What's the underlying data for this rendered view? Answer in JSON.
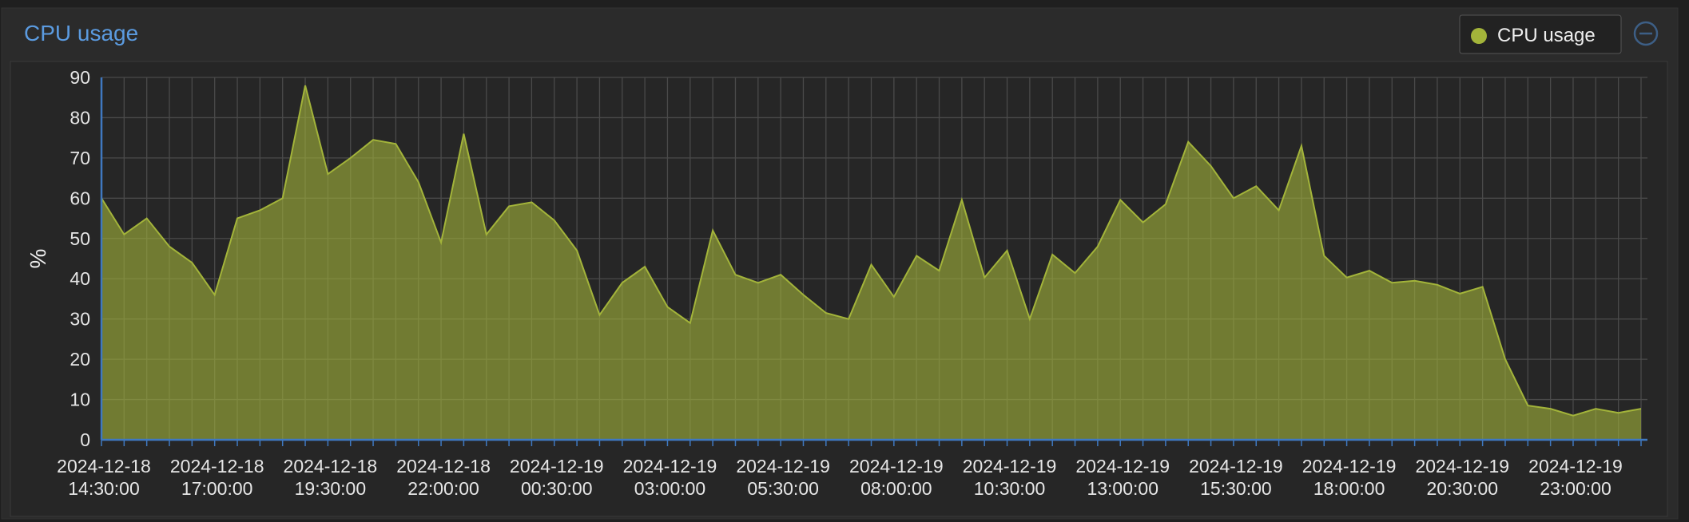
{
  "chart_data": {
    "type": "area",
    "title": "CPU usage",
    "ylabel": "%",
    "x": [
      "2024-12-18 14:30:00",
      "2024-12-18 15:00:00",
      "2024-12-18 15:30:00",
      "2024-12-18 16:00:00",
      "2024-12-18 16:30:00",
      "2024-12-18 17:00:00",
      "2024-12-18 17:30:00",
      "2024-12-18 18:00:00",
      "2024-12-18 18:30:00",
      "2024-12-18 19:00:00",
      "2024-12-18 19:30:00",
      "2024-12-18 20:00:00",
      "2024-12-18 20:30:00",
      "2024-12-18 21:00:00",
      "2024-12-18 21:30:00",
      "2024-12-18 22:00:00",
      "2024-12-18 22:30:00",
      "2024-12-18 23:00:00",
      "2024-12-18 23:30:00",
      "2024-12-19 00:00:00",
      "2024-12-19 00:30:00",
      "2024-12-19 01:00:00",
      "2024-12-19 01:30:00",
      "2024-12-19 02:00:00",
      "2024-12-19 02:30:00",
      "2024-12-19 03:00:00",
      "2024-12-19 03:30:00",
      "2024-12-19 04:00:00",
      "2024-12-19 04:30:00",
      "2024-12-19 05:00:00",
      "2024-12-19 05:30:00",
      "2024-12-19 06:00:00",
      "2024-12-19 06:30:00",
      "2024-12-19 07:00:00",
      "2024-12-19 07:30:00",
      "2024-12-19 08:00:00",
      "2024-12-19 08:30:00",
      "2024-12-19 09:00:00",
      "2024-12-19 09:30:00",
      "2024-12-19 10:00:00",
      "2024-12-19 10:30:00",
      "2024-12-19 11:00:00",
      "2024-12-19 11:30:00",
      "2024-12-19 12:00:00",
      "2024-12-19 12:30:00",
      "2024-12-19 13:00:00",
      "2024-12-19 13:30:00",
      "2024-12-19 14:00:00",
      "2024-12-19 14:30:00",
      "2024-12-19 15:00:00",
      "2024-12-19 15:30:00",
      "2024-12-19 16:00:00",
      "2024-12-19 16:30:00",
      "2024-12-19 17:00:00",
      "2024-12-19 17:30:00",
      "2024-12-19 18:00:00",
      "2024-12-19 18:30:00",
      "2024-12-19 19:00:00",
      "2024-12-19 19:30:00",
      "2024-12-19 20:00:00",
      "2024-12-19 20:30:00",
      "2024-12-19 21:00:00",
      "2024-12-19 21:30:00",
      "2024-12-19 22:00:00",
      "2024-12-19 22:30:00",
      "2024-12-19 23:00:00",
      "2024-12-19 23:30:00",
      "2024-12-20 00:00:00",
      "2024-12-20 00:30:00"
    ],
    "series": [
      {
        "name": "CPU usage",
        "color": "#a3b43a",
        "values": [
          60,
          51,
          55,
          48,
          44,
          36,
          55,
          57,
          60,
          88,
          66,
          70,
          74.5,
          73.5,
          64,
          49,
          76,
          51,
          58,
          59,
          54.5,
          47,
          31,
          39,
          43,
          33,
          29,
          52,
          41,
          39,
          41,
          36,
          31.5,
          30,
          43.5,
          35.5,
          45.7,
          42,
          59.6,
          40.3,
          47,
          30,
          46,
          41.4,
          48,
          59.6,
          54,
          58.5,
          74,
          68,
          60,
          63,
          57,
          73,
          45.7,
          40.3,
          42,
          39,
          39.5,
          38.5,
          36.3,
          38,
          20,
          8.5,
          7.7,
          6,
          7.7,
          6.7,
          7.7
        ]
      }
    ],
    "xticks": [
      "2024-12-18 14:30:00",
      "2024-12-18 17:00:00",
      "2024-12-18 19:30:00",
      "2024-12-18 22:00:00",
      "2024-12-19 00:30:00",
      "2024-12-19 03:00:00",
      "2024-12-19 05:30:00",
      "2024-12-19 08:00:00",
      "2024-12-19 10:30:00",
      "2024-12-19 13:00:00",
      "2024-12-19 15:30:00",
      "2024-12-19 18:00:00",
      "2024-12-19 20:30:00",
      "2024-12-19 23:00:00"
    ],
    "ylim": [
      0,
      90
    ],
    "yticks": [
      0,
      10,
      20,
      30,
      40,
      50,
      60,
      70,
      80,
      90
    ],
    "grid": true,
    "legend": "top-right"
  }
}
